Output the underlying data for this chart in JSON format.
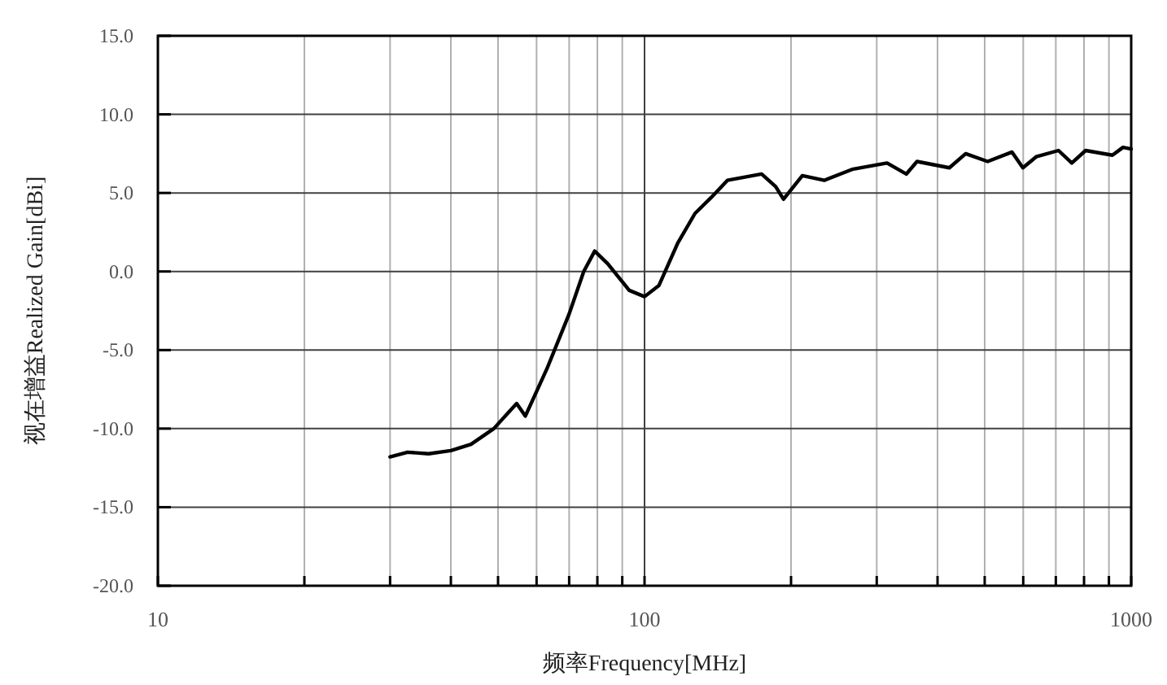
{
  "chart_data": {
    "type": "line",
    "xlabel": "频率Frequency[MHz]",
    "ylabel": "视在增益Realized Gain[dBi]",
    "log": "x",
    "grid": true,
    "marker": "none",
    "line_style": "solid",
    "xlim": [
      10,
      1000
    ],
    "ylim": [
      -20,
      15
    ],
    "xticks": [
      10,
      {
        "value": 20,
        "label": null
      },
      {
        "value": 30,
        "label": null
      },
      {
        "value": 40,
        "label": null
      },
      {
        "value": 50,
        "label": null
      },
      {
        "value": 60,
        "label": null
      },
      {
        "value": 70,
        "label": null
      },
      {
        "value": 80,
        "label": null
      },
      {
        "value": 90,
        "label": null
      },
      100,
      {
        "value": 200,
        "label": null
      },
      {
        "value": 300,
        "label": null
      },
      {
        "value": 400,
        "label": null
      },
      {
        "value": 500,
        "label": null
      },
      {
        "value": 600,
        "label": null
      },
      {
        "value": 700,
        "label": null
      },
      {
        "value": 800,
        "label": null
      },
      {
        "value": 900,
        "label": null
      },
      1000
    ],
    "yticks": [
      {
        "value": -20,
        "label": "-20.0"
      },
      {
        "value": -15,
        "label": "-15.0"
      },
      {
        "value": -10,
        "label": "-10.0"
      },
      {
        "value": -5,
        "label": "-5.0"
      },
      {
        "value": 0,
        "label": "0.0"
      },
      {
        "value": 5,
        "label": "5.0"
      },
      {
        "value": 10,
        "label": "10.0"
      },
      {
        "value": 15,
        "label": "15.0"
      }
    ],
    "series": [
      {
        "color": "#000000",
        "x": [
          30,
          32.6,
          36,
          40,
          44,
          49,
          54.6,
          56.9,
          63,
          70,
          75,
          79,
          84,
          93,
          100,
          107,
          117,
          127,
          137,
          148,
          174,
          186,
          193,
          211,
          234,
          267,
          315,
          345,
          363,
          423,
          457,
          507,
          569,
          599,
          638,
          709,
          755,
          806,
          915,
          962,
          1000
        ],
        "values": [
          -11.8,
          -11.5,
          -11.6,
          -11.4,
          -11,
          -10,
          -8.4,
          -9.2,
          -6.2,
          -2.7,
          0,
          1.3,
          0.5,
          -1.2,
          -1.6,
          -0.9,
          1.8,
          3.7,
          4.7,
          5.8,
          6.2,
          5.4,
          4.6,
          6.1,
          5.8,
          6.5,
          6.9,
          6.2,
          7,
          6.6,
          7.5,
          7,
          7.6,
          6.6,
          7.3,
          7.7,
          6.9,
          7.7,
          7.4,
          7.9,
          7.8
        ]
      }
    ]
  }
}
